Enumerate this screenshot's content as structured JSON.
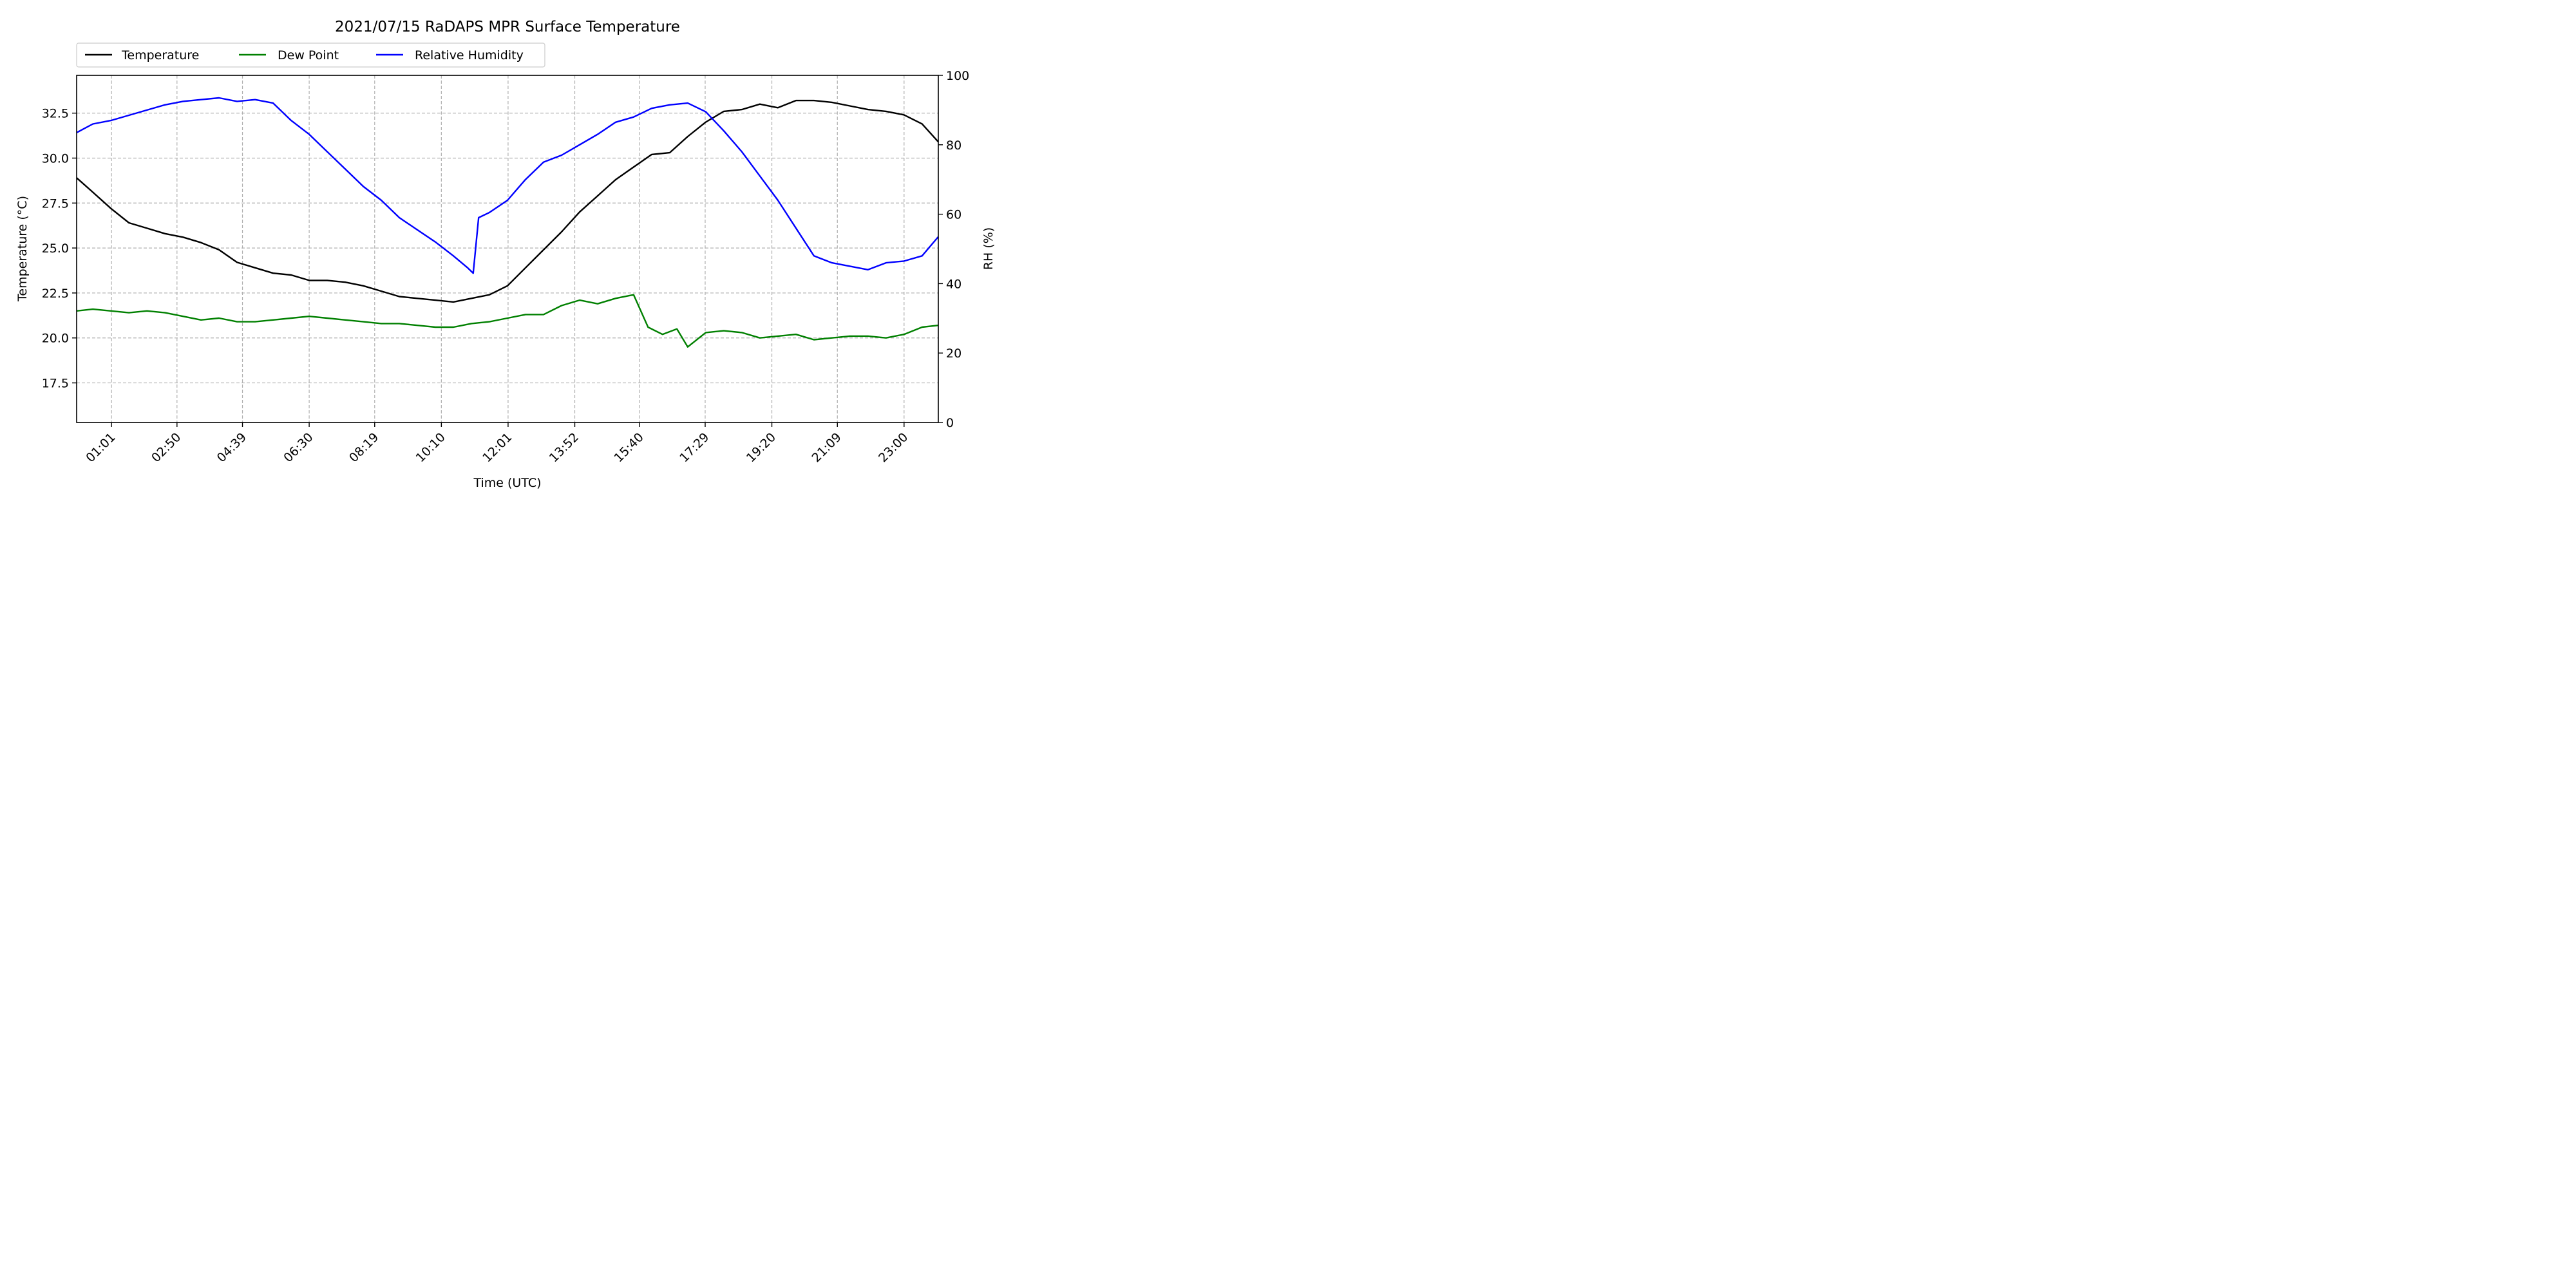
{
  "chart_data": {
    "type": "line",
    "title": "2021/07/15 RaDAPS MPR Surface Temperature",
    "xlabel": "Time (UTC)",
    "ylabel": "Temperature (°C)",
    "ylabel_right": "RH (%)",
    "x_unit": "hours UTC",
    "xlim": [
      0.05,
      23.95
    ],
    "ylim": [
      15.3,
      34.6
    ],
    "ylim_right": [
      0,
      100
    ],
    "x_ticks": [
      1.0167,
      2.8333,
      4.65,
      6.5,
      8.3167,
      10.1667,
      12.0167,
      13.8667,
      15.6667,
      17.4833,
      19.3333,
      21.15,
      23.0
    ],
    "x_tick_labels": [
      "01:01",
      "02:50",
      "04:39",
      "06:30",
      "08:19",
      "10:10",
      "12:01",
      "13:52",
      "15:40",
      "17:29",
      "19:20",
      "21:09",
      "23:00"
    ],
    "y_ticks": [
      17.5,
      20.0,
      22.5,
      25.0,
      27.5,
      30.0,
      32.5
    ],
    "y_tick_labels": [
      "17.5",
      "20.0",
      "22.5",
      "25.0",
      "27.5",
      "30.0",
      "32.5"
    ],
    "y_ticks_right": [
      0,
      20,
      40,
      60,
      80,
      100
    ],
    "y_tick_labels_right": [
      "0",
      "20",
      "40",
      "60",
      "80",
      "100"
    ],
    "grid": true,
    "legend_position": "top-left, above plot",
    "series": [
      {
        "name": "Temperature",
        "axis": "left",
        "color": "#000000",
        "x": [
          0.05,
          0.5,
          1.0,
          1.5,
          2.0,
          2.5,
          3.0,
          3.5,
          4.0,
          4.5,
          5.0,
          5.5,
          6.0,
          6.5,
          7.0,
          7.5,
          8.0,
          8.5,
          9.0,
          9.5,
          10.0,
          10.5,
          11.0,
          11.5,
          12.0,
          12.5,
          13.0,
          13.5,
          14.0,
          14.5,
          15.0,
          15.5,
          16.0,
          16.5,
          17.0,
          17.5,
          18.0,
          18.5,
          19.0,
          19.5,
          20.0,
          20.5,
          21.0,
          21.5,
          22.0,
          22.5,
          23.0,
          23.5,
          23.95
        ],
        "y": [
          28.9,
          28.1,
          27.2,
          26.4,
          26.1,
          25.8,
          25.6,
          25.3,
          24.9,
          24.2,
          23.9,
          23.6,
          23.5,
          23.2,
          23.2,
          23.1,
          22.9,
          22.6,
          22.3,
          22.2,
          22.1,
          22.0,
          22.2,
          22.4,
          22.9,
          23.9,
          24.9,
          25.9,
          27.0,
          27.9,
          28.8,
          29.5,
          30.2,
          30.3,
          31.2,
          32.0,
          32.6,
          32.7,
          33.0,
          32.8,
          33.2,
          33.2,
          33.1,
          32.9,
          32.7,
          32.6,
          32.4,
          31.9,
          30.9
        ]
      },
      {
        "name": "Dew Point",
        "axis": "left",
        "color": "#008000",
        "x": [
          0.05,
          0.5,
          1.0,
          1.5,
          2.0,
          2.5,
          3.0,
          3.5,
          4.0,
          4.5,
          5.0,
          5.5,
          6.0,
          6.5,
          7.0,
          7.5,
          8.0,
          8.5,
          9.0,
          9.5,
          10.0,
          10.5,
          11.0,
          11.5,
          12.0,
          12.5,
          13.0,
          13.5,
          14.0,
          14.5,
          15.0,
          15.5,
          15.9,
          16.3,
          16.7,
          17.0,
          17.5,
          18.0,
          18.5,
          19.0,
          19.5,
          20.0,
          20.5,
          21.0,
          21.5,
          22.0,
          22.5,
          23.0,
          23.5,
          23.95
        ],
        "y": [
          21.5,
          21.6,
          21.5,
          21.4,
          21.5,
          21.4,
          21.2,
          21.0,
          21.1,
          20.9,
          20.9,
          21.0,
          21.1,
          21.2,
          21.1,
          21.0,
          20.9,
          20.8,
          20.8,
          20.7,
          20.6,
          20.6,
          20.8,
          20.9,
          21.1,
          21.3,
          21.3,
          21.8,
          22.1,
          21.9,
          22.2,
          22.4,
          20.6,
          20.2,
          20.5,
          19.5,
          20.3,
          20.4,
          20.3,
          20.0,
          20.1,
          20.2,
          19.9,
          20.0,
          20.1,
          20.1,
          20.0,
          20.2,
          20.6,
          20.7
        ]
      },
      {
        "name": "Relative Humidity",
        "axis": "right",
        "color": "#0000ff",
        "x": [
          0.05,
          0.5,
          1.0,
          1.5,
          2.0,
          2.5,
          3.0,
          3.5,
          4.0,
          4.5,
          5.0,
          5.5,
          6.0,
          6.5,
          7.0,
          7.5,
          8.0,
          8.5,
          9.0,
          9.5,
          10.0,
          10.5,
          10.9,
          11.05,
          11.2,
          11.5,
          12.0,
          12.5,
          13.0,
          13.5,
          14.0,
          14.5,
          15.0,
          15.5,
          16.0,
          16.5,
          17.0,
          17.5,
          18.0,
          18.5,
          19.0,
          19.5,
          20.0,
          20.5,
          21.0,
          21.5,
          22.0,
          22.5,
          23.0,
          23.5,
          23.95
        ],
        "y": [
          83.5,
          86.0,
          87.0,
          88.5,
          90.0,
          91.5,
          92.5,
          93.0,
          93.5,
          92.5,
          93.0,
          92.0,
          87.0,
          83.0,
          78.0,
          73.0,
          68.0,
          64.0,
          59.0,
          55.5,
          52.0,
          48.0,
          44.5,
          43.0,
          59.0,
          60.5,
          64.0,
          70.0,
          75.0,
          77.0,
          80.0,
          83.0,
          86.5,
          88.0,
          90.5,
          91.5,
          92.0,
          89.5,
          84.0,
          78.0,
          71.0,
          64.0,
          56.0,
          48.0,
          46.0,
          45.0,
          44.0,
          46.0,
          46.5,
          48.0,
          53.5
        ]
      }
    ]
  }
}
